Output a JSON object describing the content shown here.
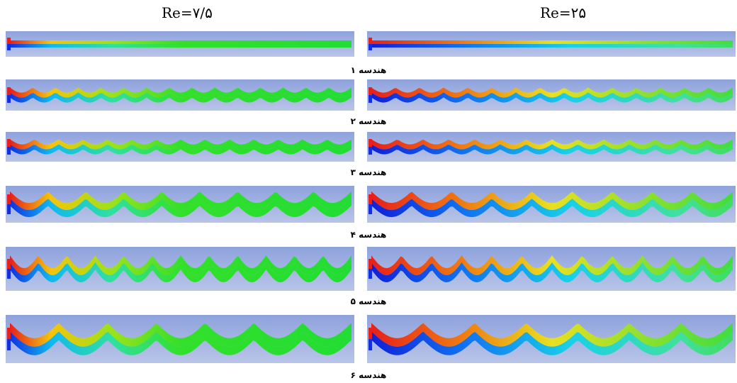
{
  "columns": [
    "Re=۷/۵",
    "Re=۲۵"
  ],
  "captions": [
    "هندسه ۱",
    "هندسه ۲",
    "هندسه ۳",
    "هندسه ۴",
    "هندسه ۵",
    "هندسه ۶"
  ]
}
